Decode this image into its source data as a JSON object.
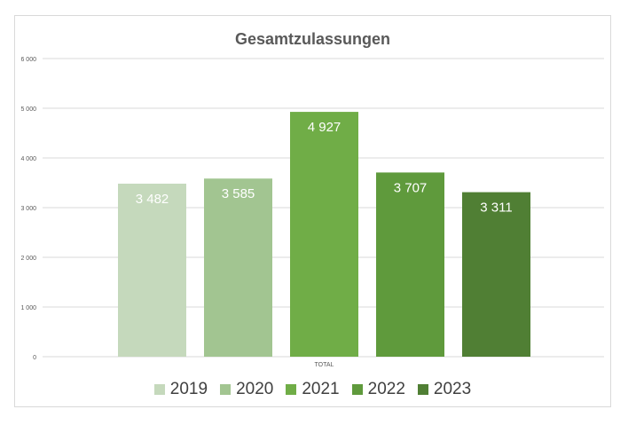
{
  "chart_data": {
    "type": "bar",
    "title": "Gesamtzulassungen",
    "categories": [
      "TOTAL"
    ],
    "series": [
      {
        "name": "2019",
        "values": [
          3482
        ],
        "label": "3 482",
        "color": "#c5d9bc"
      },
      {
        "name": "2020",
        "values": [
          3585
        ],
        "label": "3 585",
        "color": "#a2c591"
      },
      {
        "name": "2021",
        "values": [
          4927
        ],
        "label": "4 927",
        "color": "#70ad47"
      },
      {
        "name": "2022",
        "values": [
          3707
        ],
        "label": "3 707",
        "color": "#5f9a3c"
      },
      {
        "name": "2023",
        "values": [
          3311
        ],
        "label": "3 311",
        "color": "#507f34"
      }
    ],
    "yticks": [
      {
        "value": 0,
        "label": "0"
      },
      {
        "value": 1000,
        "label": "1 000"
      },
      {
        "value": 2000,
        "label": "2 000"
      },
      {
        "value": 3000,
        "label": "3 000"
      },
      {
        "value": 4000,
        "label": "4 000"
      },
      {
        "value": 5000,
        "label": "5 000"
      },
      {
        "value": 6000,
        "label": "6 000"
      }
    ],
    "ylim": [
      0,
      6000
    ],
    "xlabel": "",
    "ylabel": "",
    "grid": true,
    "legend_position": "bottom"
  }
}
